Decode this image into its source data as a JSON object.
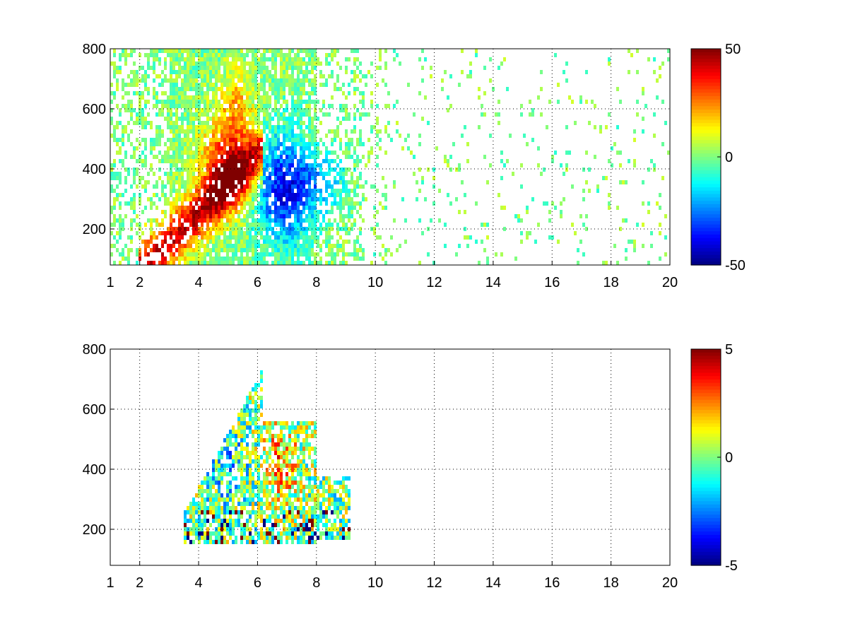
{
  "chart_data": [
    {
      "type": "heatmap",
      "title": "",
      "xlabel": "",
      "ylabel": "",
      "xlim": [
        1,
        20
      ],
      "ylim": [
        80,
        800
      ],
      "xticks": [
        1,
        2,
        4,
        6,
        8,
        10,
        12,
        14,
        16,
        18,
        20
      ],
      "yticks": [
        200,
        400,
        600,
        800
      ],
      "xtick_labels": [
        "1",
        "2",
        "4",
        "6",
        "8",
        "10",
        "12",
        "14",
        "16",
        "18",
        "20"
      ],
      "ytick_labels": [
        "200",
        "400",
        "600",
        "800"
      ],
      "grid": true,
      "colormap": "jet",
      "clim": [
        -50,
        50
      ],
      "colorbar_ticks": [
        50,
        0,
        -50
      ],
      "colorbar_tick_labels": [
        "50",
        "0",
        "-50"
      ],
      "features": [
        {
          "region": "diagonal ridge from x=2 to x=6",
          "value_sign": "positive",
          "approx_value": 30
        },
        {
          "region": "x 6-8, y 150-550",
          "value_sign": "negative",
          "approx_value": -30
        },
        {
          "region": "x 8-20",
          "value_sign": "near zero, sparse",
          "approx_value": 0
        }
      ]
    },
    {
      "type": "heatmap",
      "title": "",
      "xlabel": "",
      "ylabel": "",
      "xlim": [
        1,
        20
      ],
      "ylim": [
        80,
        800
      ],
      "xticks": [
        1,
        2,
        4,
        6,
        8,
        10,
        12,
        14,
        16,
        18,
        20
      ],
      "yticks": [
        200,
        400,
        600,
        800
      ],
      "xtick_labels": [
        "1",
        "2",
        "4",
        "6",
        "8",
        "10",
        "12",
        "14",
        "16",
        "18",
        "20"
      ],
      "ytick_labels": [
        "200",
        "400",
        "600",
        "800"
      ],
      "grid": true,
      "colormap": "jet",
      "clim": [
        -5,
        5
      ],
      "colorbar_ticks": [
        5,
        0,
        -5
      ],
      "colorbar_tick_labels": [
        "5",
        "0",
        "-5"
      ],
      "features": [
        {
          "region": "x 3.5-9, y 150-750",
          "value_sign": "mixed",
          "approx_value": 0
        },
        {
          "region": "x 6-8, y 150-550",
          "value_sign": "positive",
          "approx_value": 3
        },
        {
          "region": "x 3.5-6, y 150-250",
          "value_sign": "mixed extremes",
          "approx_value": 0
        }
      ]
    }
  ]
}
